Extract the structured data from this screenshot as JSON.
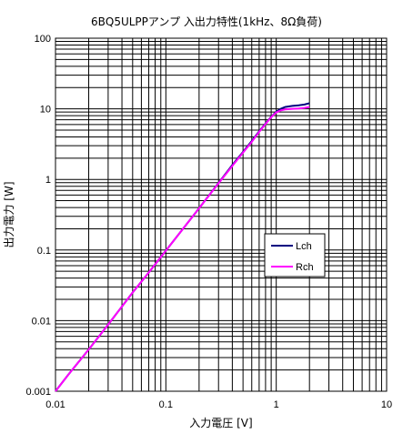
{
  "chart_data": {
    "type": "line",
    "title": "6BQ5ULPPアンプ 入出力特性(1kHz、8Ω負荷)",
    "xlabel": "入力電圧 [V]",
    "ylabel": "出力電力 [W]",
    "xscale": "log",
    "yscale": "log",
    "xlim": [
      0.01,
      10
    ],
    "ylim": [
      0.001,
      100
    ],
    "x_ticks": [
      "0.01",
      "0.1",
      "1",
      "10"
    ],
    "y_ticks": [
      "0.001",
      "0.01",
      "0.1",
      "1",
      "10",
      "100"
    ],
    "grid": true,
    "legend_position": "right-center",
    "series": [
      {
        "name": "Lch",
        "color": "#000080",
        "x": [
          0.01,
          0.013,
          0.02,
          0.03,
          0.05,
          0.07,
          0.1,
          0.15,
          0.2,
          0.3,
          0.4,
          0.5,
          0.6,
          0.7,
          0.8,
          0.9,
          1.0,
          1.1,
          1.2,
          1.4,
          1.6,
          1.8,
          2.0
        ],
        "y": [
          0.001,
          0.0017,
          0.0039,
          0.0088,
          0.025,
          0.048,
          0.098,
          0.22,
          0.39,
          0.89,
          1.6,
          2.45,
          3.5,
          4.8,
          6.2,
          7.7,
          9.1,
          10.0,
          10.6,
          11.0,
          11.2,
          11.5,
          12.0
        ]
      },
      {
        "name": "Rch",
        "color": "#ff00ff",
        "x": [
          0.01,
          0.013,
          0.02,
          0.03,
          0.05,
          0.07,
          0.1,
          0.15,
          0.2,
          0.3,
          0.4,
          0.5,
          0.6,
          0.7,
          0.8,
          0.9,
          1.0,
          1.1,
          1.2,
          1.4,
          1.6,
          1.8,
          2.0
        ],
        "y": [
          0.001,
          0.0017,
          0.0039,
          0.0088,
          0.025,
          0.048,
          0.098,
          0.22,
          0.39,
          0.88,
          1.55,
          2.4,
          3.4,
          4.7,
          6.1,
          7.6,
          8.9,
          9.5,
          9.8,
          10.0,
          10.1,
          10.3,
          10.6
        ]
      }
    ]
  }
}
